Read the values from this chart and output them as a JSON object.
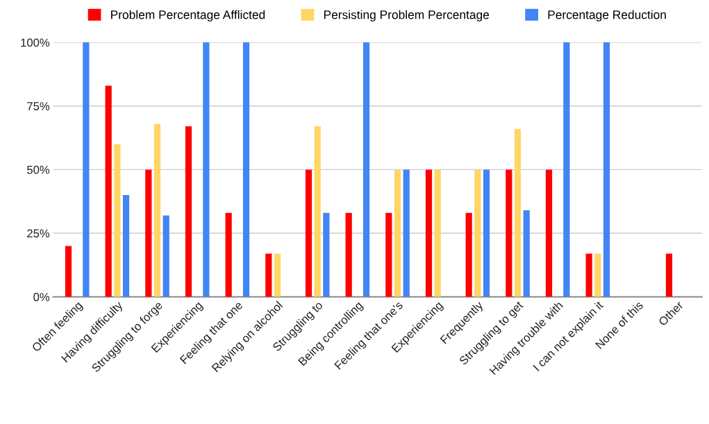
{
  "chart_data": {
    "type": "bar",
    "categories": [
      "Often feeling",
      "Having difficulty",
      "Struggling to forge",
      "Experiencing",
      "Feeling that one",
      "Relying on alcohol",
      "Struggling to",
      "Being controlling",
      "Feeling that one's",
      "Experiencing",
      "Frequently",
      "Struggling to get",
      "Having trouble with",
      "I can not explain it",
      "None of this",
      "Other"
    ],
    "series": [
      {
        "name": "Problem Percentage Afflicted",
        "color": "#ff0000",
        "values": [
          20,
          83,
          50,
          67,
          33,
          17,
          50,
          33,
          33,
          50,
          33,
          50,
          50,
          17,
          null,
          17
        ]
      },
      {
        "name": "Persisting Problem Percentage",
        "color": "#ffd666",
        "values": [
          null,
          60,
          68,
          null,
          null,
          17,
          67,
          null,
          50,
          50,
          50,
          66,
          null,
          17,
          null,
          null
        ]
      },
      {
        "name": "Percentage Reduction",
        "color": "#4285f4",
        "values": [
          100,
          40,
          32,
          100,
          100,
          null,
          33,
          100,
          50,
          null,
          50,
          34,
          100,
          100,
          null,
          null
        ]
      }
    ],
    "ylim": [
      0,
      100
    ],
    "yticks": [
      {
        "value": 0,
        "label": "0%"
      },
      {
        "value": 25,
        "label": "25%"
      },
      {
        "value": 50,
        "label": "50%"
      },
      {
        "value": 75,
        "label": "75%"
      },
      {
        "value": 100,
        "label": "100%"
      }
    ],
    "grid": "y",
    "legend": "top"
  }
}
